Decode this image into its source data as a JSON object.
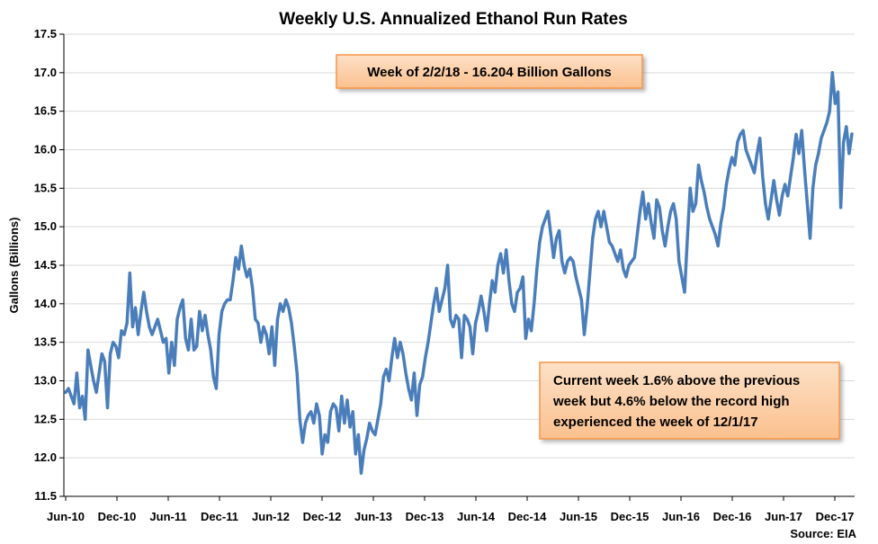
{
  "chart_data": {
    "type": "line",
    "title": "Weekly U.S. Annualized  Ethanol Run Rates",
    "ylabel": "Gallons (Billions)",
    "xlabel": "",
    "ylim": [
      11.5,
      17.5
    ],
    "yticks": [
      "11.5",
      "12.0",
      "12.5",
      "13.0",
      "13.5",
      "14.0",
      "14.5",
      "15.0",
      "15.5",
      "16.0",
      "16.5",
      "17.0",
      "17.5"
    ],
    "xticks": [
      "Jun-10",
      "Dec-10",
      "Jun-11",
      "Dec-11",
      "Jun-12",
      "Dec-12",
      "Jun-13",
      "Dec-13",
      "Jun-14",
      "Dec-14",
      "Jun-15",
      "Dec-15",
      "Jun-16",
      "Dec-16",
      "Jun-17",
      "Dec-17"
    ],
    "grid": "horizontal",
    "line_color": "#4a7ebb",
    "series": [
      {
        "x_start": "Jun-10",
        "x_end": "Feb-18",
        "values": [
          12.85,
          12.9,
          12.8,
          12.7,
          13.1,
          12.65,
          12.8,
          12.5,
          13.4,
          13.2,
          13.0,
          12.85,
          13.1,
          13.35,
          13.25,
          12.65,
          13.35,
          13.5,
          13.45,
          13.3,
          13.65,
          13.6,
          13.75,
          14.4,
          13.7,
          13.95,
          13.6,
          13.9,
          14.15,
          13.9,
          13.7,
          13.6,
          13.7,
          13.8,
          13.65,
          13.5,
          13.55,
          13.1,
          13.5,
          13.2,
          13.8,
          13.95,
          14.05,
          13.55,
          13.4,
          13.8,
          13.4,
          13.45,
          13.9,
          13.65,
          13.85,
          13.6,
          13.4,
          13.05,
          12.9,
          13.6,
          13.9,
          14.0,
          14.05,
          14.05,
          14.3,
          14.6,
          14.45,
          14.75,
          14.5,
          14.35,
          14.45,
          14.2,
          13.8,
          13.75,
          13.5,
          13.7,
          13.6,
          13.35,
          13.7,
          13.2,
          13.8,
          14.0,
          13.9,
          14.05,
          13.95,
          13.75,
          13.45,
          13.1,
          12.5,
          12.2,
          12.45,
          12.55,
          12.6,
          12.45,
          12.7,
          12.55,
          12.05,
          12.3,
          12.2,
          12.6,
          12.7,
          12.65,
          12.35,
          12.8,
          12.45,
          12.75,
          12.4,
          12.6,
          12.05,
          12.3,
          11.8,
          12.1,
          12.25,
          12.45,
          12.35,
          12.3,
          12.5,
          12.7,
          13.05,
          13.15,
          13.0,
          13.3,
          13.55,
          13.3,
          13.5,
          13.35,
          13.1,
          12.9,
          12.75,
          13.1,
          12.55,
          12.95,
          13.05,
          13.3,
          13.5,
          13.75,
          14.0,
          14.2,
          13.9,
          14.05,
          14.2,
          14.5,
          13.8,
          13.7,
          13.85,
          13.8,
          13.3,
          13.85,
          13.8,
          13.7,
          13.35,
          13.75,
          13.9,
          14.1,
          13.9,
          13.65,
          14.0,
          14.3,
          14.15,
          14.5,
          14.65,
          14.4,
          14.7,
          14.3,
          14.0,
          13.9,
          14.15,
          14.2,
          14.35,
          13.55,
          13.8,
          13.65,
          14.0,
          14.45,
          14.8,
          15.0,
          15.1,
          15.2,
          14.9,
          14.6,
          14.85,
          14.95,
          14.55,
          14.4,
          14.55,
          14.6,
          14.55,
          14.35,
          14.2,
          14.05,
          13.6,
          13.95,
          14.4,
          14.85,
          15.1,
          15.2,
          15.0,
          15.2,
          15.0,
          14.8,
          14.75,
          14.65,
          14.55,
          14.7,
          14.45,
          14.35,
          14.5,
          14.55,
          14.6,
          14.9,
          15.2,
          15.45,
          15.1,
          15.3,
          15.05,
          14.85,
          15.35,
          15.25,
          14.95,
          14.75,
          15.0,
          15.2,
          15.3,
          15.1,
          14.55,
          14.35,
          14.15,
          14.85,
          15.5,
          15.2,
          15.3,
          15.8,
          15.6,
          15.45,
          15.25,
          15.1,
          15.0,
          14.9,
          14.75,
          15.05,
          15.25,
          15.55,
          15.75,
          15.9,
          15.8,
          16.1,
          16.2,
          16.25,
          16.0,
          15.9,
          15.8,
          15.7,
          15.95,
          16.15,
          15.65,
          15.3,
          15.1,
          15.35,
          15.6,
          15.35,
          15.15,
          15.4,
          15.55,
          15.4,
          15.65,
          15.9,
          16.2,
          15.95,
          16.25,
          15.75,
          15.3,
          14.85,
          15.5,
          15.8,
          15.95,
          16.15,
          16.25,
          16.35,
          16.5,
          17.0,
          16.6,
          16.75,
          15.25,
          16.1,
          16.3,
          15.95,
          16.204
        ]
      }
    ]
  },
  "annotations": {
    "top_box": "Week of 2/2/18 - 16.204 Billion Gallons",
    "bottom_box_lines": [
      "Current week 1.6% above the previous",
      "week but 4.6% below the record high",
      "experienced the week of 12/1/17"
    ],
    "box_fill": "#fbd5b5",
    "box_border": "#f79646"
  },
  "source": "Source: EIA"
}
